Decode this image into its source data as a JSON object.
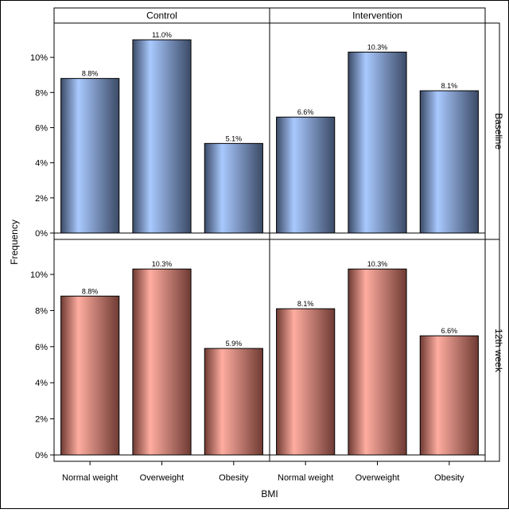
{
  "chart_data": {
    "type": "bar",
    "xlabel": "BMI",
    "ylabel": "Frequency",
    "categories": [
      "Normal weight",
      "Overweight",
      "Obesity"
    ],
    "columns": [
      "Control",
      "Intervention"
    ],
    "rows": [
      "Baseline",
      "12th week"
    ],
    "y_ticks": [
      "0%",
      "2%",
      "4%",
      "6%",
      "8%",
      "10%"
    ],
    "ylim": [
      0,
      11.5
    ],
    "grid": false,
    "panels": [
      {
        "column": "Control",
        "row": "Baseline",
        "values": [
          8.8,
          11.0,
          5.1
        ],
        "labels": [
          "8.8%",
          "11.0%",
          "5.1%"
        ]
      },
      {
        "column": "Intervention",
        "row": "Baseline",
        "values": [
          6.6,
          10.3,
          8.1
        ],
        "labels": [
          "6.6%",
          "10.3%",
          "8.1%"
        ]
      },
      {
        "column": "Control",
        "row": "12th week",
        "values": [
          8.8,
          10.3,
          5.9
        ],
        "labels": [
          "8.8%",
          "10.3%",
          "5.9%"
        ]
      },
      {
        "column": "Intervention",
        "row": "12th week",
        "values": [
          8.1,
          10.3,
          6.6
        ],
        "labels": [
          "8.1%",
          "10.3%",
          "6.6%"
        ]
      }
    ],
    "colors": {
      "Baseline": {
        "dark": "#3b4a66",
        "light": "#a9c9ff"
      },
      "12th week": {
        "dark": "#6e3a33",
        "light": "#ffada0"
      }
    }
  }
}
